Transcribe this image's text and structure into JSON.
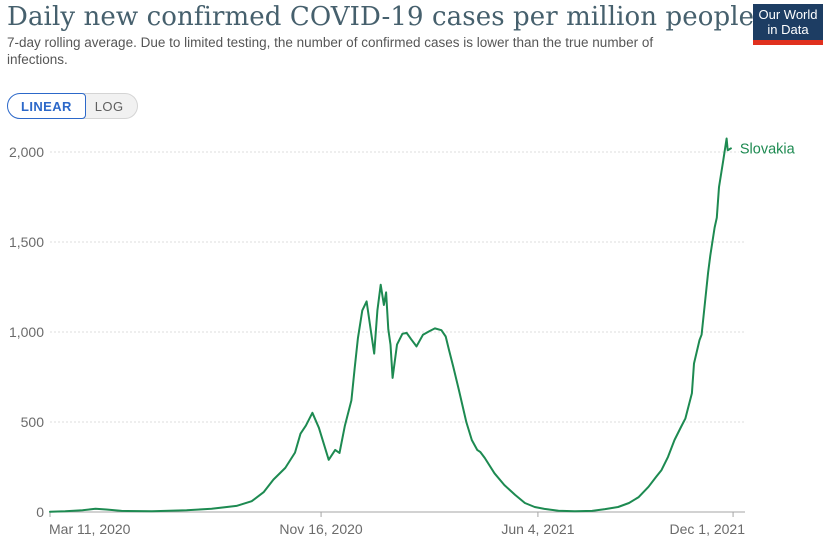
{
  "header": {
    "title": "Daily new confirmed COVID-19 cases per million people",
    "subtitle": "7-day rolling average. Due to limited testing, the number of confirmed cases is lower than the true number of infections.",
    "logo": {
      "line1": "Our World",
      "line2": "in Data",
      "bg_color": "#1d3d63",
      "stripe_color": "#e0301e"
    }
  },
  "controls": {
    "linear_label": "LINEAR",
    "log_label": "LOG",
    "selected_scale": "LINEAR",
    "active_color": "#2c68c9"
  },
  "chart_data": {
    "type": "line",
    "title": "Daily new confirmed COVID-19 cases per million people",
    "ylabel": "",
    "xlabel": "",
    "grid": "dashed-horizontal",
    "legend_position": "end-of-line-label",
    "end_label": "Slovakia",
    "x_axis": {
      "start_date": "2020-03-11",
      "end_date": "2021-12-12",
      "ticks": [
        {
          "date": "2020-03-11",
          "label": "Mar 11, 2020",
          "align": "start"
        },
        {
          "date": "2020-11-16",
          "label": "Nov 16, 2020",
          "align": "middle"
        },
        {
          "date": "2021-06-04",
          "label": "Jun 4, 2021",
          "align": "middle"
        },
        {
          "date": "2021-12-01",
          "label": "Dec 1, 2021",
          "align": "end"
        }
      ]
    },
    "y_axis": {
      "range": [
        0,
        2070
      ],
      "ticks": [
        0,
        500,
        1000,
        1500,
        2000
      ],
      "tick_labels": [
        "0",
        "500",
        "1,000",
        "1,500",
        "2,000"
      ]
    },
    "series": [
      {
        "name": "Slovakia",
        "color": "#1d8a51",
        "points": [
          [
            "2020-03-11",
            1
          ],
          [
            "2020-03-25",
            4
          ],
          [
            "2020-04-10",
            10
          ],
          [
            "2020-04-22",
            18
          ],
          [
            "2020-05-02",
            14
          ],
          [
            "2020-05-16",
            6
          ],
          [
            "2020-06-13",
            4
          ],
          [
            "2020-07-15",
            10
          ],
          [
            "2020-08-07",
            18
          ],
          [
            "2020-08-30",
            34
          ],
          [
            "2020-09-13",
            60
          ],
          [
            "2020-09-24",
            110
          ],
          [
            "2020-10-03",
            180
          ],
          [
            "2020-10-14",
            245
          ],
          [
            "2020-10-23",
            330
          ],
          [
            "2020-10-28",
            435
          ],
          [
            "2020-11-02",
            480
          ],
          [
            "2020-11-08",
            551
          ],
          [
            "2020-11-14",
            468
          ],
          [
            "2020-11-19",
            370
          ],
          [
            "2020-11-23",
            290
          ],
          [
            "2020-11-29",
            345
          ],
          [
            "2020-12-03",
            328
          ],
          [
            "2020-12-08",
            480
          ],
          [
            "2020-12-14",
            620
          ],
          [
            "2020-12-17",
            800
          ],
          [
            "2020-12-20",
            965
          ],
          [
            "2020-12-24",
            1120
          ],
          [
            "2020-12-28",
            1170
          ],
          [
            "2021-01-01",
            1005
          ],
          [
            "2021-01-04",
            880
          ],
          [
            "2021-01-07",
            1120
          ],
          [
            "2021-01-10",
            1262
          ],
          [
            "2021-01-13",
            1150
          ],
          [
            "2021-01-15",
            1220
          ],
          [
            "2021-01-17",
            1015
          ],
          [
            "2021-01-19",
            930
          ],
          [
            "2021-01-21",
            745
          ],
          [
            "2021-01-25",
            930
          ],
          [
            "2021-01-30",
            990
          ],
          [
            "2021-02-03",
            995
          ],
          [
            "2021-02-07",
            960
          ],
          [
            "2021-02-12",
            920
          ],
          [
            "2021-02-18",
            985
          ],
          [
            "2021-02-24",
            1005
          ],
          [
            "2021-03-01",
            1020
          ],
          [
            "2021-03-07",
            1010
          ],
          [
            "2021-03-11",
            975
          ],
          [
            "2021-03-14",
            900
          ],
          [
            "2021-03-18",
            806
          ],
          [
            "2021-03-23",
            680
          ],
          [
            "2021-03-30",
            500
          ],
          [
            "2021-04-04",
            400
          ],
          [
            "2021-04-09",
            345
          ],
          [
            "2021-04-12",
            333
          ],
          [
            "2021-04-16",
            300
          ],
          [
            "2021-04-25",
            215
          ],
          [
            "2021-05-04",
            150
          ],
          [
            "2021-05-14",
            95
          ],
          [
            "2021-05-23",
            50
          ],
          [
            "2021-06-01",
            28
          ],
          [
            "2021-06-10",
            17
          ],
          [
            "2021-06-23",
            7
          ],
          [
            "2021-07-08",
            4
          ],
          [
            "2021-07-24",
            6
          ],
          [
            "2021-08-05",
            16
          ],
          [
            "2021-08-17",
            28
          ],
          [
            "2021-08-27",
            50
          ],
          [
            "2021-09-05",
            83
          ],
          [
            "2021-09-14",
            140
          ],
          [
            "2021-09-21",
            195
          ],
          [
            "2021-09-26",
            233
          ],
          [
            "2021-10-02",
            306
          ],
          [
            "2021-10-08",
            400
          ],
          [
            "2021-10-14",
            472
          ],
          [
            "2021-10-18",
            520
          ],
          [
            "2021-10-24",
            660
          ],
          [
            "2021-10-26",
            825
          ],
          [
            "2021-10-31",
            955
          ],
          [
            "2021-11-02",
            985
          ],
          [
            "2021-11-05",
            1160
          ],
          [
            "2021-11-08",
            1330
          ],
          [
            "2021-11-10",
            1425
          ],
          [
            "2021-11-14",
            1580
          ],
          [
            "2021-11-16",
            1635
          ],
          [
            "2021-11-18",
            1805
          ],
          [
            "2021-11-22",
            1955
          ],
          [
            "2021-11-25",
            2075
          ],
          [
            "2021-11-26",
            2010
          ],
          [
            "2021-11-29",
            2020
          ]
        ]
      }
    ]
  }
}
